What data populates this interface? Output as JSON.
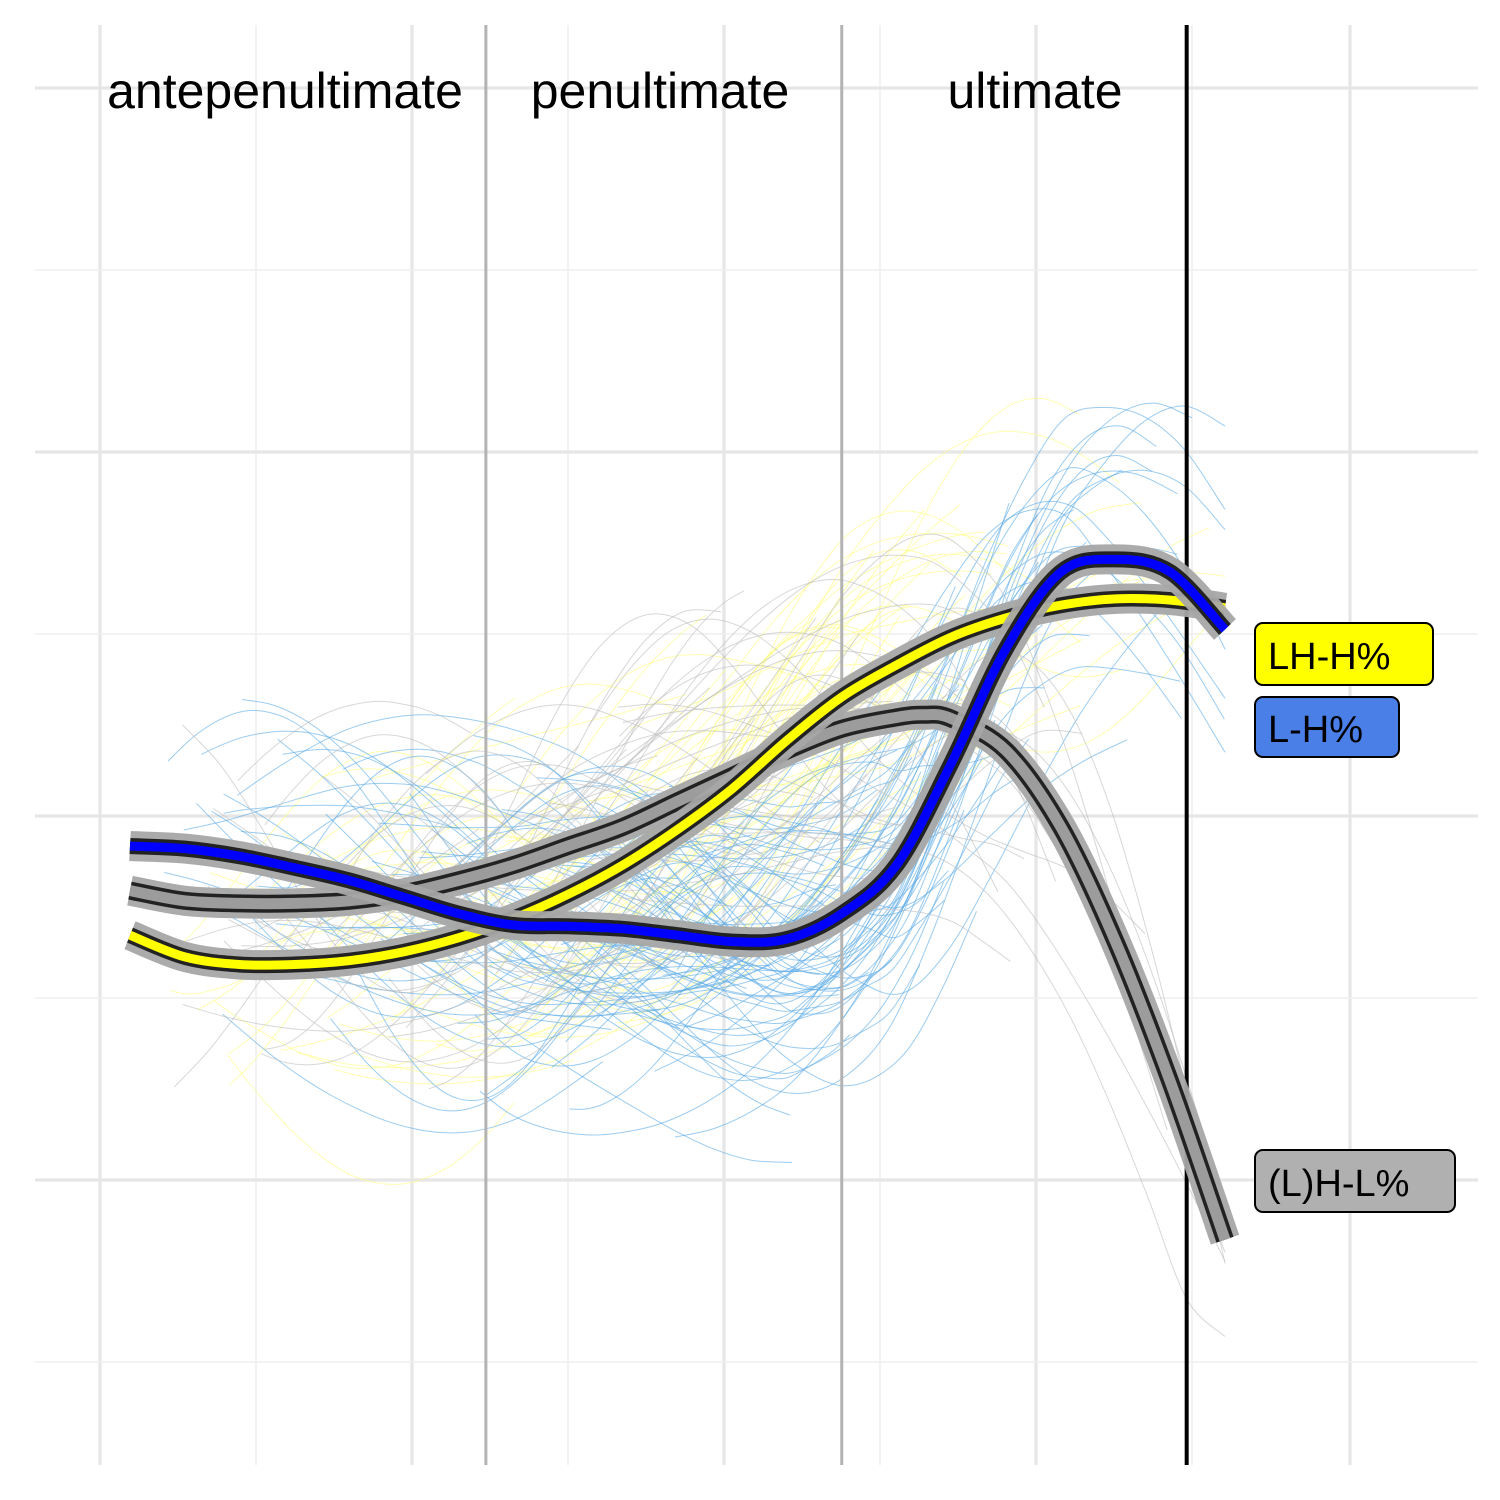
{
  "chart_data": {
    "type": "line",
    "title": "",
    "xlabel": "",
    "ylabel": "",
    "xlim": [
      0,
      1
    ],
    "ylim": [
      0,
      1
    ],
    "grid": true,
    "axes_tick_labels_shown": false,
    "region_labels": [
      "antepenultimate",
      "penultimate",
      "ultimate"
    ],
    "region_boundaries": [
      0.325,
      0.65,
      0.965
    ],
    "series": [
      {
        "name": "LH-H%",
        "color": "#ffff00",
        "trace_color": "#ffff80",
        "x": [
          0.0,
          0.05,
          0.1,
          0.15,
          0.2,
          0.25,
          0.3,
          0.35,
          0.4,
          0.45,
          0.5,
          0.55,
          0.6,
          0.65,
          0.7,
          0.75,
          0.8,
          0.85,
          0.9,
          0.95,
          1.0
        ],
        "y": [
          0.335,
          0.318,
          0.312,
          0.312,
          0.315,
          0.322,
          0.333,
          0.348,
          0.367,
          0.39,
          0.418,
          0.45,
          0.488,
          0.522,
          0.547,
          0.569,
          0.584,
          0.594,
          0.599,
          0.598,
          0.592
        ]
      },
      {
        "name": "L-H%",
        "color": "#0000ff",
        "label_color": "#4a7fe8",
        "trace_color": "#5aaae6",
        "x": [
          0.0,
          0.05,
          0.1,
          0.15,
          0.2,
          0.25,
          0.3,
          0.35,
          0.4,
          0.45,
          0.5,
          0.55,
          0.6,
          0.65,
          0.7,
          0.75,
          0.8,
          0.85,
          0.9,
          0.95,
          1.0
        ],
        "y": [
          0.405,
          0.403,
          0.397,
          0.388,
          0.378,
          0.365,
          0.352,
          0.343,
          0.342,
          0.34,
          0.335,
          0.33,
          0.332,
          0.352,
          0.39,
          0.47,
          0.56,
          0.62,
          0.63,
          0.62,
          0.575
        ]
      },
      {
        "name": "(L)H-L%",
        "color": "#555555",
        "label_color": "#b0b0b0",
        "trace_color": "#bdbdbd",
        "x": [
          0.0,
          0.05,
          0.1,
          0.15,
          0.2,
          0.25,
          0.3,
          0.35,
          0.4,
          0.45,
          0.5,
          0.55,
          0.6,
          0.65,
          0.7,
          0.725,
          0.75,
          0.8,
          0.85,
          0.9,
          0.95,
          1.0
        ],
        "y": [
          0.37,
          0.362,
          0.36,
          0.36,
          0.362,
          0.368,
          0.378,
          0.39,
          0.405,
          0.42,
          0.44,
          0.46,
          0.48,
          0.497,
          0.506,
          0.508,
          0.505,
          0.48,
          0.42,
          0.33,
          0.22,
          0.096
        ]
      }
    ]
  },
  "legend": {
    "placement": "right",
    "items": [
      {
        "label": "LH-H%",
        "fill": "#ffff00"
      },
      {
        "label": "L-H%",
        "fill": "#4a7fe8"
      },
      {
        "label": "(L)H-L%",
        "fill": "#b0b0b0"
      }
    ]
  }
}
